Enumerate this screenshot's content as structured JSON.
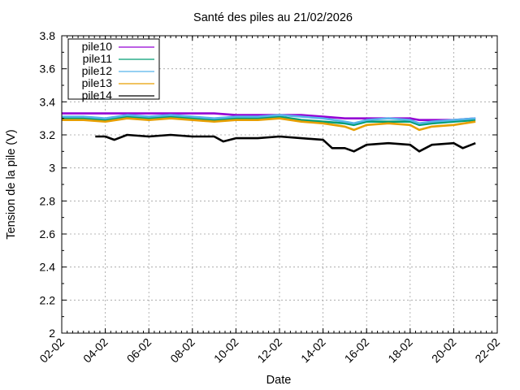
{
  "chart_data": {
    "type": "line",
    "title": "Santé des piles au 21/02/2026",
    "xlabel": "Date",
    "ylabel": "Tension de la pile (V)",
    "xlim": [
      "02-02",
      "22-02"
    ],
    "ylim": [
      2,
      3.8
    ],
    "x_ticks": [
      "02-02",
      "04-02",
      "06-02",
      "08-02",
      "10-02",
      "12-02",
      "14-02",
      "16-02",
      "18-02",
      "20-02",
      "22-02"
    ],
    "y_ticks": [
      "2",
      "2.2",
      "2.4",
      "2.6",
      "2.8",
      "3",
      "3.2",
      "3.4",
      "3.6",
      "3.8"
    ],
    "grid": true,
    "legend_position": "top-left",
    "series": [
      {
        "name": "pile10",
        "color": "#9400d3",
        "x": [
          "02-02",
          "03-02",
          "04-02",
          "05-02",
          "06-02",
          "07-02",
          "08-02",
          "09-02",
          "10-02",
          "11-02",
          "12-02",
          "13-02",
          "14-02",
          "15-02",
          "15-12",
          "16-02",
          "17-02",
          "18-02",
          "18-12",
          "19-02",
          "20-02",
          "21-02"
        ],
        "y": [
          3.33,
          3.33,
          3.33,
          3.33,
          3.33,
          3.33,
          3.33,
          3.33,
          3.32,
          3.32,
          3.32,
          3.32,
          3.31,
          3.3,
          3.3,
          3.3,
          3.3,
          3.3,
          3.29,
          3.29,
          3.29,
          3.3
        ]
      },
      {
        "name": "pile11",
        "color": "#009e73",
        "x": [
          "02-02",
          "03-02",
          "04-02",
          "05-02",
          "06-02",
          "07-02",
          "08-02",
          "09-02",
          "10-02",
          "11-02",
          "12-02",
          "13-02",
          "14-02",
          "15-02",
          "15-12",
          "16-02",
          "17-02",
          "18-02",
          "18-12",
          "19-02",
          "20-02",
          "21-02"
        ],
        "y": [
          3.3,
          3.3,
          3.29,
          3.31,
          3.3,
          3.31,
          3.3,
          3.29,
          3.3,
          3.3,
          3.31,
          3.29,
          3.28,
          3.27,
          3.26,
          3.28,
          3.28,
          3.28,
          3.26,
          3.27,
          3.28,
          3.29
        ]
      },
      {
        "name": "pile12",
        "color": "#56b4e9",
        "x": [
          "02-02",
          "03-02",
          "04-02",
          "05-02",
          "06-02",
          "07-02",
          "08-02",
          "09-02",
          "10-02",
          "11-02",
          "12-02",
          "13-02",
          "14-02",
          "15-02",
          "15-12",
          "16-02",
          "17-02",
          "18-02",
          "18-12",
          "19-02",
          "20-02",
          "21-02"
        ],
        "y": [
          3.31,
          3.31,
          3.3,
          3.32,
          3.31,
          3.32,
          3.31,
          3.3,
          3.31,
          3.31,
          3.32,
          3.31,
          3.3,
          3.28,
          3.27,
          3.29,
          3.3,
          3.29,
          3.27,
          3.28,
          3.29,
          3.3
        ]
      },
      {
        "name": "pile13",
        "color": "#e69f00",
        "x": [
          "02-02",
          "03-02",
          "04-02",
          "05-02",
          "06-02",
          "07-02",
          "08-02",
          "09-02",
          "10-02",
          "11-02",
          "12-02",
          "13-02",
          "14-02",
          "15-02",
          "15-12",
          "16-02",
          "17-02",
          "18-02",
          "18-12",
          "19-02",
          "20-02",
          "21-02"
        ],
        "y": [
          3.29,
          3.29,
          3.28,
          3.3,
          3.29,
          3.3,
          3.29,
          3.28,
          3.29,
          3.29,
          3.3,
          3.28,
          3.27,
          3.25,
          3.23,
          3.26,
          3.27,
          3.26,
          3.23,
          3.25,
          3.26,
          3.28
        ]
      },
      {
        "name": "pile14",
        "color": "#000000",
        "x": [
          "03-15",
          "04-02",
          "04-12",
          "05-02",
          "06-02",
          "07-02",
          "08-02",
          "09-02",
          "09-12",
          "10-02",
          "11-02",
          "12-02",
          "13-02",
          "14-02",
          "14-12",
          "15-02",
          "15-12",
          "16-02",
          "17-02",
          "18-02",
          "18-12",
          "19-02",
          "20-02",
          "20-12",
          "21-02"
        ],
        "y": [
          3.19,
          3.19,
          3.17,
          3.2,
          3.19,
          3.2,
          3.19,
          3.19,
          3.16,
          3.18,
          3.18,
          3.19,
          3.18,
          3.17,
          3.12,
          3.12,
          3.1,
          3.14,
          3.15,
          3.14,
          3.1,
          3.14,
          3.15,
          3.12,
          3.15
        ]
      }
    ]
  }
}
